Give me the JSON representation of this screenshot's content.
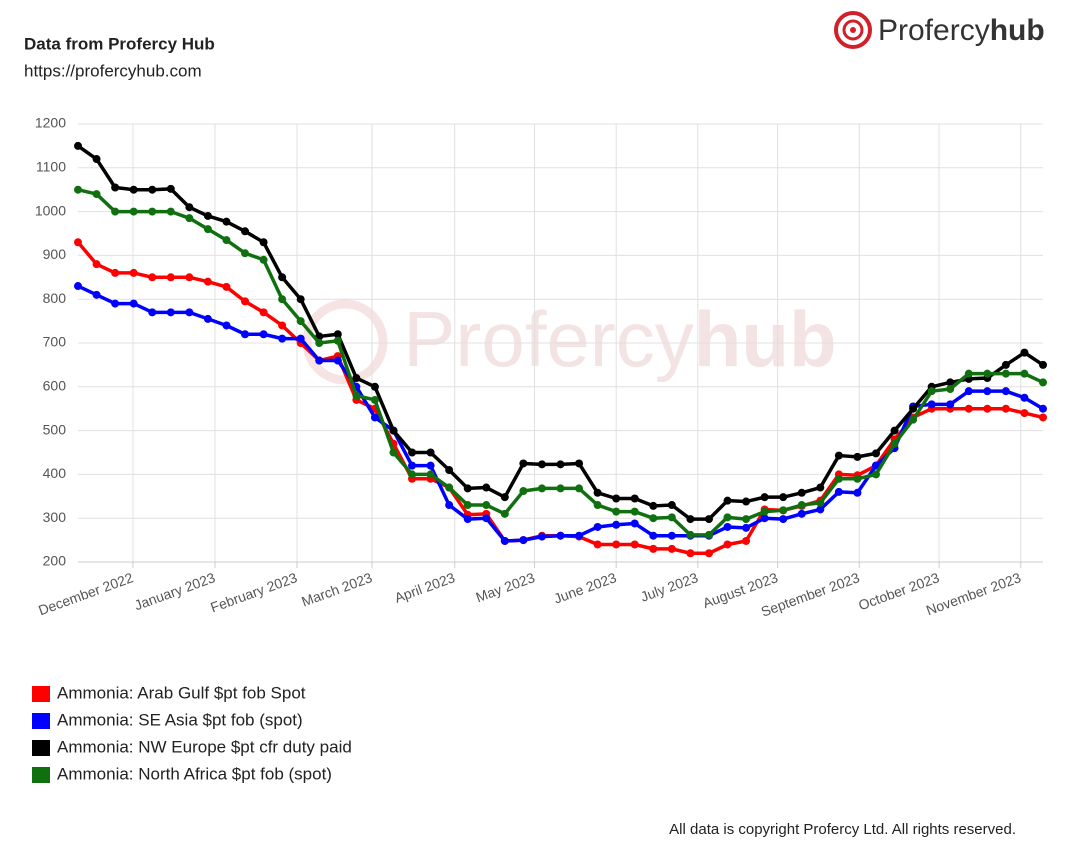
{
  "header": {
    "title": "Data from Profercy Hub",
    "url": "https://profercyhub.com"
  },
  "logo": {
    "name": "Profercy",
    "suffix": "hub"
  },
  "footer": "All data is copyright Profercy Ltd. All rights reserved.",
  "chart_data": {
    "type": "line",
    "categories": [
      null,
      null,
      null,
      null,
      null,
      null,
      null,
      null,
      null,
      null,
      null,
      null,
      null,
      null,
      null,
      null,
      null,
      null,
      null,
      null,
      null,
      null,
      null,
      null,
      null,
      null,
      null,
      null,
      null,
      null,
      null,
      null,
      null,
      null,
      null,
      null,
      null,
      null,
      null,
      null,
      null,
      null,
      null,
      null,
      null,
      null,
      null,
      null,
      null,
      null,
      null,
      null,
      null
    ],
    "xlim": [
      0,
      52
    ],
    "xticks": [
      {
        "value": 2.96,
        "label": "December 2022"
      },
      {
        "value": 7.38,
        "label": "January 2023"
      },
      {
        "value": 11.8,
        "label": "February 2023"
      },
      {
        "value": 15.84,
        "label": "March 2023"
      },
      {
        "value": 20.3,
        "label": "April 2023"
      },
      {
        "value": 24.6,
        "label": "May 2023"
      },
      {
        "value": 29.0,
        "label": "June 2023"
      },
      {
        "value": 33.4,
        "label": "July 2023"
      },
      {
        "value": 37.7,
        "label": "August 2023"
      },
      {
        "value": 42.1,
        "label": "September 2023"
      },
      {
        "value": 46.4,
        "label": "October 2023"
      },
      {
        "value": 50.8,
        "label": "November 2023"
      }
    ],
    "ylim": [
      200,
      1200
    ],
    "yticks": [
      200,
      300,
      400,
      500,
      600,
      700,
      800,
      900,
      1000,
      1100,
      1200
    ],
    "grid": true,
    "series": [
      {
        "name": "Ammonia: Arab Gulf $pt fob Spot",
        "color": "#ff0000",
        "values": [
          930,
          880,
          860,
          860,
          850,
          850,
          850,
          840,
          828,
          795,
          770,
          740,
          700,
          660,
          670,
          570,
          550,
          470,
          390,
          390,
          370,
          308,
          310,
          248,
          250,
          260,
          260,
          258,
          240,
          240,
          240,
          230,
          230,
          220,
          220,
          240,
          248,
          320,
          318,
          328,
          340,
          400,
          398,
          420,
          480,
          530,
          550,
          550,
          550,
          550,
          550,
          540,
          530
        ]
      },
      {
        "name": "Ammonia: SE Asia $pt fob (spot)",
        "color": "#0000ff",
        "values": [
          830,
          810,
          790,
          790,
          770,
          770,
          770,
          755,
          740,
          720,
          720,
          710,
          710,
          660,
          660,
          600,
          530,
          500,
          420,
          420,
          330,
          298,
          300,
          248,
          250,
          258,
          260,
          260,
          280,
          285,
          288,
          260,
          260,
          260,
          260,
          280,
          278,
          300,
          298,
          310,
          320,
          360,
          358,
          420,
          460,
          555,
          560,
          560,
          590,
          590,
          590,
          575,
          550
        ]
      },
      {
        "name": "Ammonia: NW Europe $pt cfr duty paid",
        "color": "#000000",
        "values": [
          1150,
          1120,
          1055,
          1050,
          1050,
          1052,
          1010,
          990,
          977,
          955,
          930,
          850,
          800,
          715,
          720,
          620,
          600,
          500,
          450,
          450,
          410,
          368,
          370,
          348,
          425,
          423,
          423,
          425,
          358,
          345,
          345,
          328,
          330,
          298,
          298,
          340,
          338,
          348,
          348,
          358,
          370,
          443,
          440,
          448,
          500,
          550,
          600,
          610,
          618,
          620,
          650,
          678,
          650
        ]
      },
      {
        "name": "Ammonia: North Africa $pt fob (spot)",
        "color": "#107010",
        "values": [
          1050,
          1040,
          1000,
          1000,
          1000,
          1000,
          985,
          960,
          935,
          905,
          890,
          800,
          750,
          700,
          705,
          580,
          570,
          450,
          400,
          400,
          370,
          330,
          330,
          310,
          362,
          368,
          368,
          368,
          330,
          315,
          315,
          300,
          302,
          262,
          262,
          302,
          298,
          315,
          318,
          330,
          335,
          390,
          390,
          400,
          470,
          525,
          590,
          595,
          630,
          630,
          630,
          630,
          610
        ]
      }
    ]
  }
}
